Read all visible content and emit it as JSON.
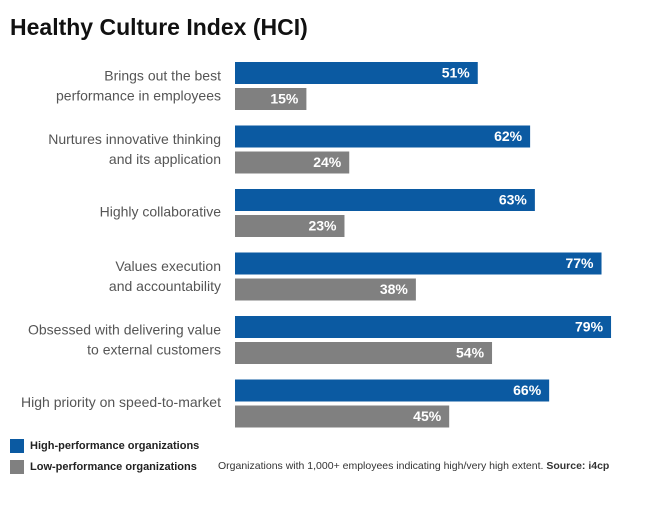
{
  "chart_data": {
    "type": "bar",
    "orientation": "horizontal",
    "title": "Healthy Culture Index (HCI)",
    "categories": [
      [
        "Brings out the best",
        "performance in employees"
      ],
      [
        "Nurtures innovative thinking",
        "and its application"
      ],
      [
        "Highly collaborative"
      ],
      [
        "Values execution",
        "and accountability"
      ],
      [
        "Obsessed with delivering value",
        "to external customers"
      ],
      [
        "High priority on speed-to-market"
      ]
    ],
    "series": [
      {
        "name": "High-performance organizations",
        "color": "#0b5aa2",
        "values": [
          51,
          62,
          63,
          77,
          79,
          66
        ],
        "value_labels": [
          "51%",
          "62%",
          "63%",
          "77%",
          "79%",
          "66%"
        ]
      },
      {
        "name": "Low-performance organizations",
        "color": "#808080",
        "values": [
          15,
          24,
          23,
          38,
          54,
          45
        ],
        "value_labels": [
          "15%",
          "24%",
          "23%",
          "38%",
          "54%",
          "45%"
        ]
      }
    ],
    "xlim": [
      0,
      100
    ],
    "note": "Organizations with 1,000+ employees indicating high/very high extent.",
    "source": "Source: i4cp"
  }
}
